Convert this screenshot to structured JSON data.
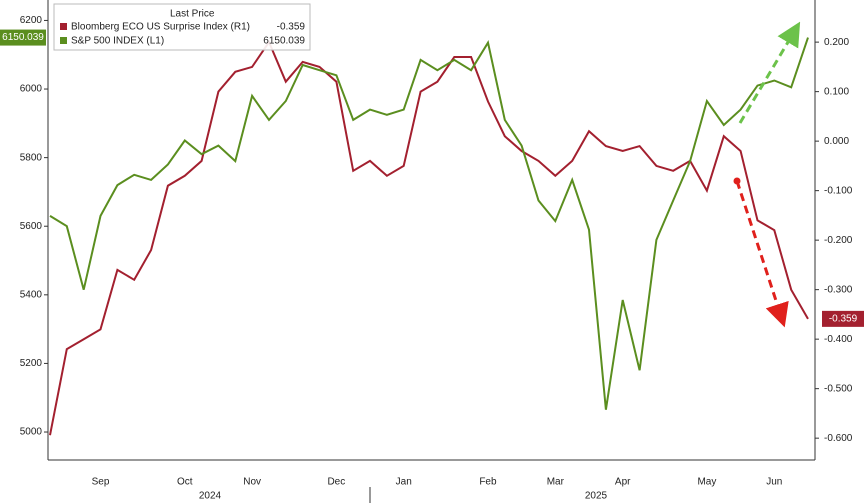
{
  "chart_data": {
    "type": "line",
    "legend_title": "Last Price",
    "categories": [
      null,
      null,
      null,
      "Sep",
      null,
      null,
      null,
      null,
      "Oct",
      null,
      null,
      null,
      "Nov",
      null,
      null,
      null,
      null,
      "Dec",
      null,
      null,
      null,
      "Jan",
      null,
      null,
      null,
      null,
      "Feb",
      null,
      null,
      null,
      "Mar",
      null,
      null,
      null,
      "Apr",
      null,
      null,
      null,
      null,
      "May",
      null,
      null,
      null,
      "Jun",
      null,
      null
    ],
    "x_group_labels": [
      "2024",
      "2025"
    ],
    "series": [
      {
        "name": "Bloomberg ECO US Surprise Index (R1)",
        "color": "#a3202f",
        "axis": "y2",
        "values": [
          -0.594,
          -0.42,
          -0.4,
          -0.38,
          -0.26,
          -0.28,
          -0.22,
          -0.09,
          -0.07,
          -0.04,
          0.1,
          0.14,
          0.15,
          0.2,
          0.12,
          0.16,
          0.15,
          0.12,
          -0.06,
          -0.04,
          -0.07,
          -0.05,
          0.1,
          0.12,
          0.17,
          0.17,
          0.08,
          0.01,
          -0.02,
          -0.04,
          -0.07,
          -0.04,
          0.02,
          -0.01,
          -0.02,
          -0.01,
          -0.05,
          -0.06,
          -0.04,
          -0.1,
          0.01,
          -0.02,
          -0.16,
          -0.18,
          -0.3,
          -0.359
        ]
      },
      {
        "name": "S&P 500 INDEX (L1)",
        "color": "#5b8e1f",
        "values": [
          5630,
          5600,
          5415,
          5630,
          5720,
          5750,
          5735,
          5780,
          5850,
          5810,
          5835,
          5790,
          5980,
          5910,
          5965,
          6070,
          6055,
          6040,
          5910,
          5940,
          5925,
          5940,
          6085,
          6055,
          6085,
          6055,
          6135,
          5910,
          5835,
          5675,
          5615,
          5735,
          5590,
          5065,
          5385,
          5180,
          5560,
          5675,
          5790,
          5965,
          5895,
          5940,
          6010,
          6025,
          6005,
          6150.039
        ]
      }
    ],
    "ylim": [
      4933,
      6245
    ],
    "yticks": [
      5000,
      5200,
      5400,
      5600,
      5800,
      6000,
      6200
    ],
    "y2lim": [
      -0.634,
      0.275
    ],
    "y2ticks": [
      {
        "value": -0.6,
        "label": "-0.600"
      },
      {
        "value": -0.5,
        "label": "-0.500"
      },
      {
        "value": -0.4,
        "label": "-0.400"
      },
      {
        "value": -0.3,
        "label": "-0.300"
      },
      {
        "value": -0.2,
        "label": "-0.200"
      },
      {
        "value": -0.1,
        "label": "-0.100"
      },
      {
        "value": 0,
        "label": "0.000"
      },
      {
        "value": 0.1,
        "label": "0.100"
      },
      {
        "value": 0.2,
        "label": "0.200"
      }
    ],
    "grid": false
  }
}
